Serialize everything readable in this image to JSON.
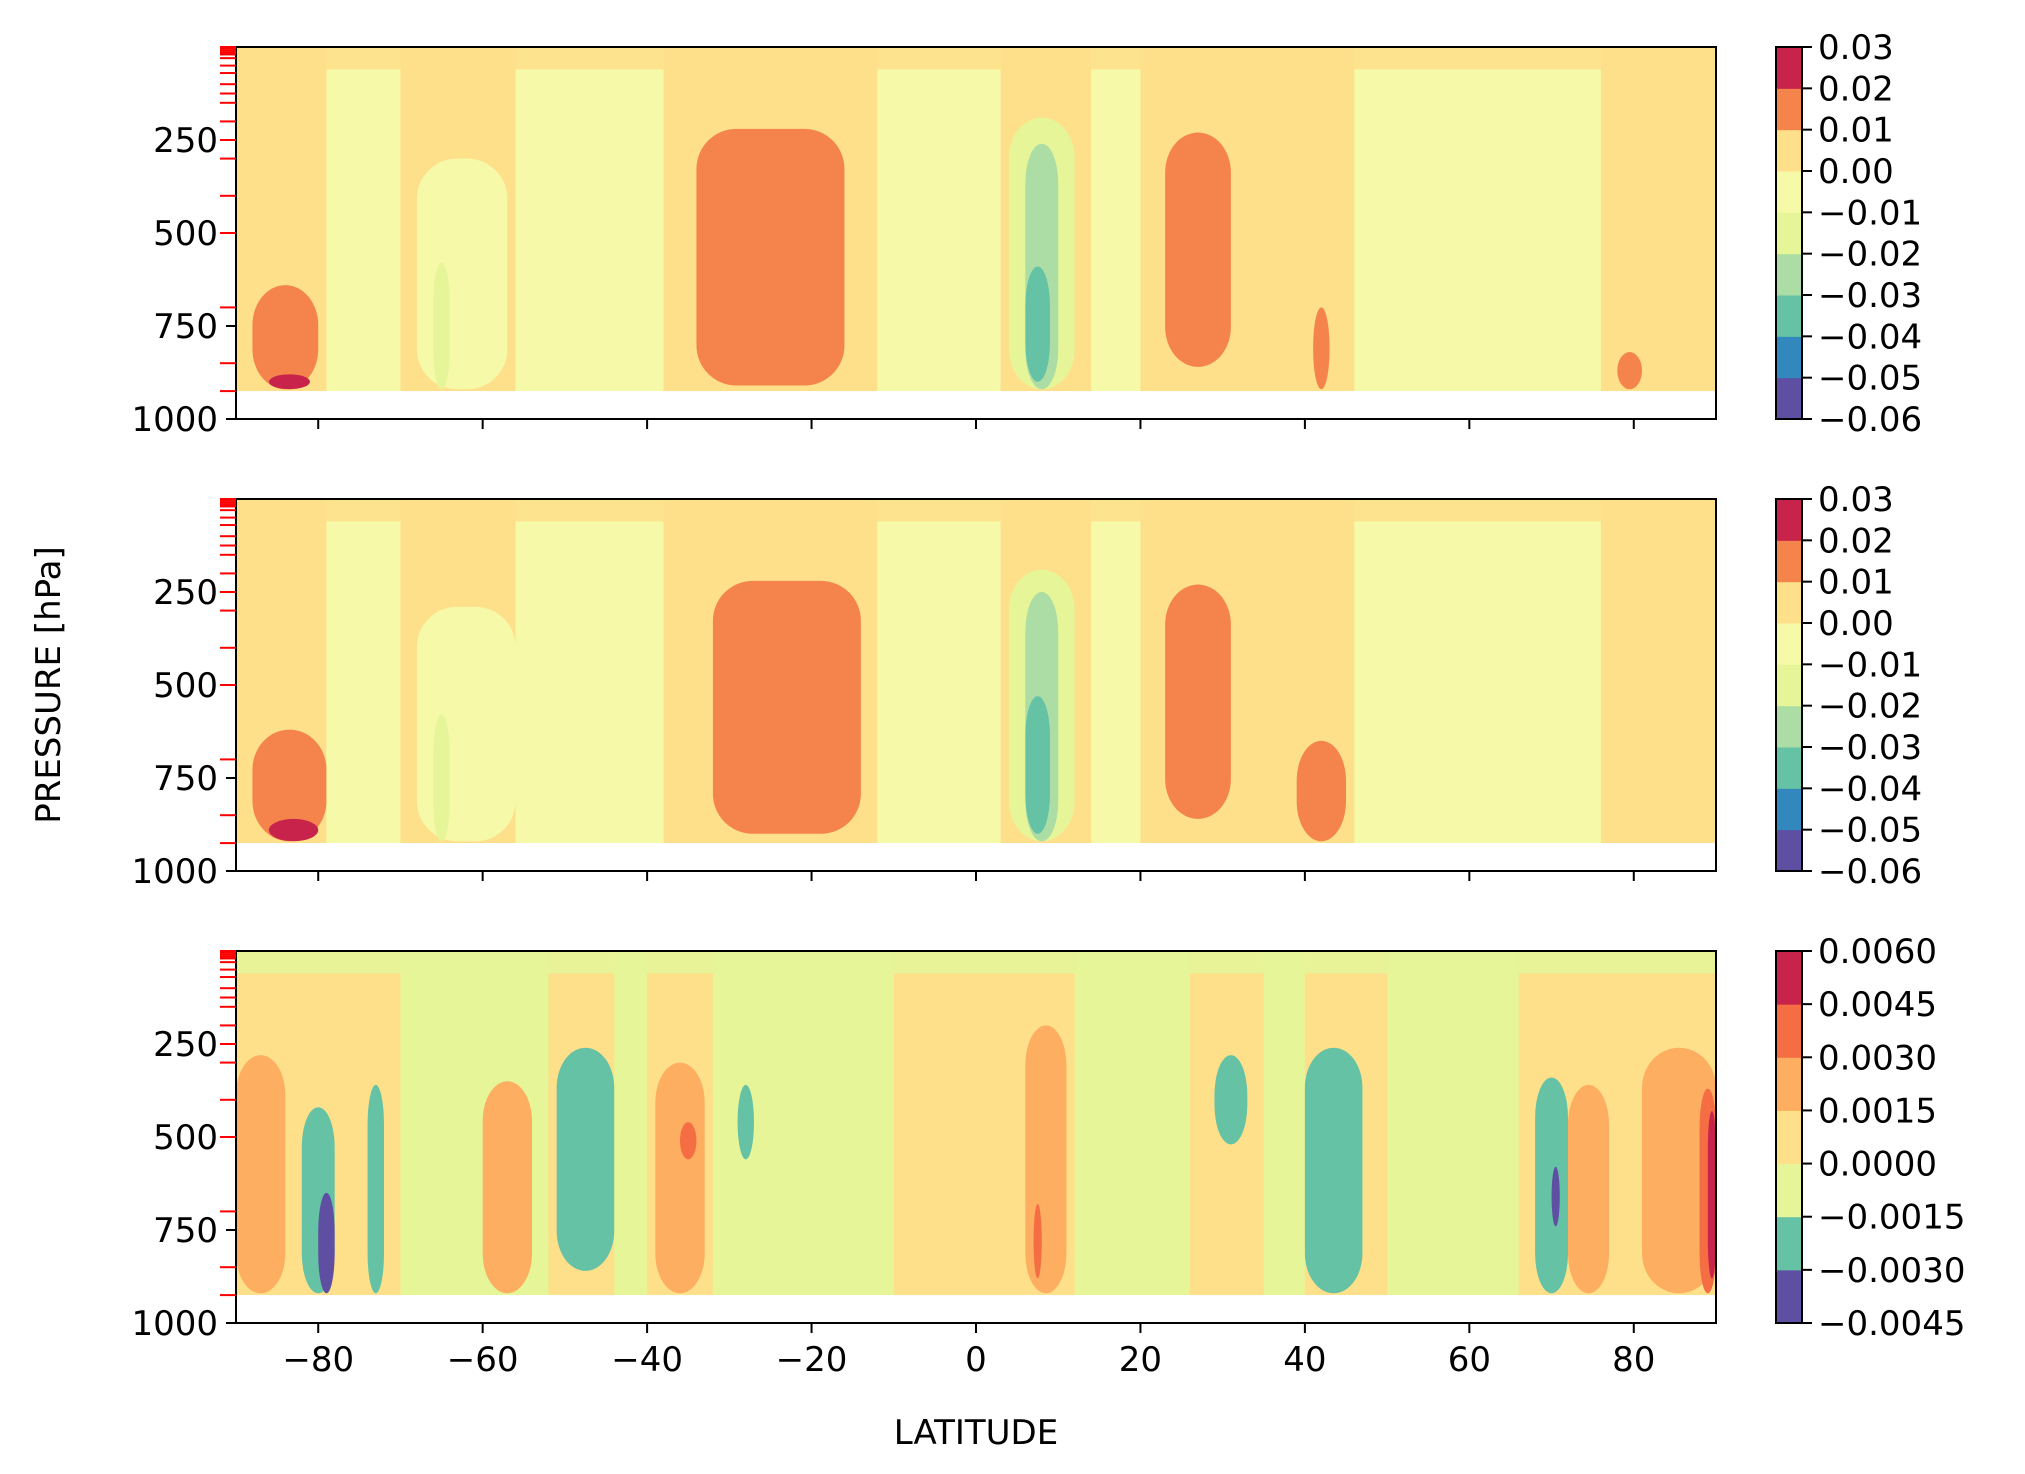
{
  "chart_data": [
    {
      "type": "heatmap",
      "panel": "top",
      "xlim": [
        -90,
        90
      ],
      "ylim": [
        1000,
        0
      ],
      "yticks": [
        250,
        500,
        750,
        1000
      ],
      "yticklabels": [
        "250",
        "500",
        "750",
        "1000"
      ],
      "colorbar": {
        "levels": [
          -0.06,
          -0.05,
          -0.04,
          -0.03,
          -0.02,
          -0.01,
          0.0,
          0.01,
          0.02,
          0.03
        ],
        "labels": [
          "0.03",
          "0.02",
          "0.01",
          "0.00",
          "−0.01",
          "−0.02",
          "−0.03",
          "−0.04",
          "−0.05",
          "−0.06"
        ],
        "colors": [
          "#5e4fa2",
          "#3288bd",
          "#66c2a5",
          "#abdda4",
          "#e6f598",
          "#f5f9a8",
          "#fee08b",
          "#f4844c",
          "#c7234b"
        ]
      },
      "features": [
        {
          "lat": [
            -34,
            -16
          ],
          "p": [
            220,
            910
          ],
          "level": 0.01
        },
        {
          "lat": [
            23,
            31
          ],
          "p": [
            230,
            860
          ],
          "level": 0.01
        },
        {
          "lat": [
            4,
            12
          ],
          "p": [
            190,
            920
          ],
          "level": -0.02
        },
        {
          "lat": [
            6,
            10
          ],
          "p": [
            260,
            920
          ],
          "level": -0.03
        },
        {
          "lat": [
            6,
            9
          ],
          "p": [
            590,
            900
          ],
          "level": -0.04
        },
        {
          "lat": [
            -68,
            -57
          ],
          "p": [
            300,
            920
          ],
          "level": -0.01
        },
        {
          "lat": [
            -66,
            -64
          ],
          "p": [
            580,
            920
          ],
          "level": -0.02
        },
        {
          "lat": [
            -88,
            -80
          ],
          "p": [
            640,
            920
          ],
          "level": 0.01
        },
        {
          "lat": [
            -86,
            -81
          ],
          "p": [
            880,
            920
          ],
          "level": 0.02
        },
        {
          "lat": [
            41,
            43
          ],
          "p": [
            700,
            920
          ],
          "level": 0.01
        },
        {
          "lat": [
            56,
            59
          ],
          "p": [
            500,
            920
          ],
          "level": -0.01
        },
        {
          "lat": [
            78,
            81
          ],
          "p": [
            820,
            920
          ],
          "level": 0.01
        }
      ]
    },
    {
      "type": "heatmap",
      "panel": "middle",
      "xlim": [
        -90,
        90
      ],
      "ylim": [
        1000,
        0
      ],
      "yticks": [
        250,
        500,
        750,
        1000
      ],
      "yticklabels": [
        "250",
        "500",
        "750",
        "1000"
      ],
      "ylabel": "PRESSURE [hPa]",
      "colorbar": {
        "levels": [
          -0.06,
          -0.05,
          -0.04,
          -0.03,
          -0.02,
          -0.01,
          0.0,
          0.01,
          0.02,
          0.03
        ],
        "labels": [
          "0.03",
          "0.02",
          "0.01",
          "0.00",
          "−0.01",
          "−0.02",
          "−0.03",
          "−0.04",
          "−0.05",
          "−0.06"
        ],
        "colors": [
          "#5e4fa2",
          "#3288bd",
          "#66c2a5",
          "#abdda4",
          "#e6f598",
          "#f5f9a8",
          "#fee08b",
          "#f4844c",
          "#c7234b"
        ]
      },
      "features": [
        {
          "lat": [
            -32,
            -14
          ],
          "p": [
            220,
            900
          ],
          "level": 0.01
        },
        {
          "lat": [
            23,
            31
          ],
          "p": [
            230,
            860
          ],
          "level": 0.01
        },
        {
          "lat": [
            4,
            12
          ],
          "p": [
            190,
            920
          ],
          "level": -0.02
        },
        {
          "lat": [
            6,
            10
          ],
          "p": [
            250,
            920
          ],
          "level": -0.03
        },
        {
          "lat": [
            6,
            9
          ],
          "p": [
            530,
            900
          ],
          "level": -0.04
        },
        {
          "lat": [
            -68,
            -56
          ],
          "p": [
            290,
            920
          ],
          "level": -0.01
        },
        {
          "lat": [
            -66,
            -64
          ],
          "p": [
            580,
            920
          ],
          "level": -0.02
        },
        {
          "lat": [
            -88,
            -79
          ],
          "p": [
            620,
            920
          ],
          "level": 0.01
        },
        {
          "lat": [
            -86,
            -80
          ],
          "p": [
            860,
            920
          ],
          "level": 0.02
        },
        {
          "lat": [
            39,
            45
          ],
          "p": [
            650,
            920
          ],
          "level": 0.01
        },
        {
          "lat": [
            56,
            60
          ],
          "p": [
            480,
            920
          ],
          "level": -0.01
        }
      ]
    },
    {
      "type": "heatmap",
      "panel": "bottom",
      "xlim": [
        -90,
        90
      ],
      "ylim": [
        1000,
        0
      ],
      "yticks": [
        250,
        500,
        750,
        1000
      ],
      "yticklabels": [
        "250",
        "500",
        "750",
        "1000"
      ],
      "xticks": [
        -80,
        -60,
        -40,
        -20,
        0,
        20,
        40,
        60,
        80
      ],
      "xticklabels": [
        "−80",
        "−60",
        "−40",
        "−20",
        "0",
        "20",
        "40",
        "60",
        "80"
      ],
      "xlabel": "LATITUDE",
      "colorbar": {
        "levels": [
          -0.0045,
          -0.003,
          -0.0015,
          0.0,
          0.0015,
          0.003,
          0.0045,
          0.006
        ],
        "labels": [
          "0.0060",
          "0.0045",
          "0.0030",
          "0.0015",
          "0.0000",
          "−0.0015",
          "−0.0030",
          "−0.0045"
        ],
        "colors": [
          "#5e4fa2",
          "#66c2a5",
          "#e6f598",
          "#fee08b",
          "#fdae61",
          "#f46d43",
          "#c7234b"
        ]
      },
      "features": [
        {
          "lat": [
            -90,
            -84
          ],
          "p": [
            280,
            920
          ],
          "level": 0.0015
        },
        {
          "lat": [
            -82,
            -78
          ],
          "p": [
            420,
            920
          ],
          "level": -0.003
        },
        {
          "lat": [
            -80,
            -78
          ],
          "p": [
            650,
            920
          ],
          "level": -0.0045
        },
        {
          "lat": [
            -74,
            -72
          ],
          "p": [
            360,
            920
          ],
          "level": -0.003
        },
        {
          "lat": [
            -60,
            -54
          ],
          "p": [
            350,
            920
          ],
          "level": 0.0015
        },
        {
          "lat": [
            -51,
            -44
          ],
          "p": [
            260,
            860
          ],
          "level": -0.003
        },
        {
          "lat": [
            -39,
            -33
          ],
          "p": [
            300,
            920
          ],
          "level": 0.0015
        },
        {
          "lat": [
            -36,
            -34
          ],
          "p": [
            460,
            560
          ],
          "level": 0.003
        },
        {
          "lat": [
            -29,
            -27
          ],
          "p": [
            360,
            560
          ],
          "level": -0.003
        },
        {
          "lat": [
            6,
            11
          ],
          "p": [
            200,
            920
          ],
          "level": 0.0015
        },
        {
          "lat": [
            7,
            8
          ],
          "p": [
            680,
            880
          ],
          "level": 0.003
        },
        {
          "lat": [
            29,
            33
          ],
          "p": [
            280,
            520
          ],
          "level": -0.003
        },
        {
          "lat": [
            40,
            47
          ],
          "p": [
            260,
            920
          ],
          "level": -0.003
        },
        {
          "lat": [
            68,
            72
          ],
          "p": [
            340,
            920
          ],
          "level": -0.003
        },
        {
          "lat": [
            70,
            71
          ],
          "p": [
            580,
            740
          ],
          "level": -0.0045
        },
        {
          "lat": [
            72,
            77
          ],
          "p": [
            360,
            920
          ],
          "level": 0.0015
        },
        {
          "lat": [
            81,
            90
          ],
          "p": [
            260,
            920
          ],
          "level": 0.0015
        },
        {
          "lat": [
            88,
            90
          ],
          "p": [
            370,
            920
          ],
          "level": 0.003
        },
        {
          "lat": [
            89,
            90
          ],
          "p": [
            430,
            880
          ],
          "level": 0.0045
        }
      ]
    }
  ]
}
